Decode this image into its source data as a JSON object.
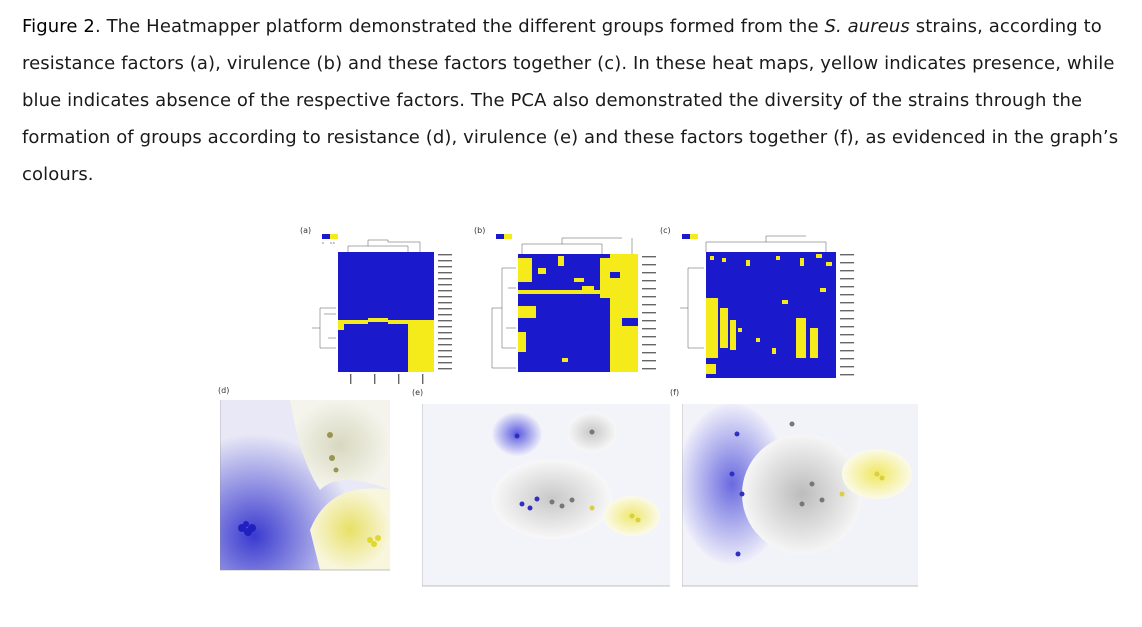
{
  "caption": {
    "figure_label": "Figure 2",
    "part1": ". The Heatmapper platform demonstrated the different groups formed from the ",
    "species": "S. aureus",
    "part2": " strains, according to resistance factors (a), virulence (b) and these factors together (c). In these heat maps, yellow indicates presence, while blue indicates absence of the respective factors. The PCA also demonstrated the diversity of the strains through the formation of groups according to resistance (d), virulence (e) and these factors together (f), as evidenced in the graph’s colours."
  },
  "panels": {
    "a": "(a)",
    "b": "(b)",
    "c": "(c)",
    "d": "(d)",
    "e": "(e)",
    "f": "(f)"
  },
  "colors": {
    "presence": "#f5ea1a",
    "absence": "#1a1acc"
  }
}
